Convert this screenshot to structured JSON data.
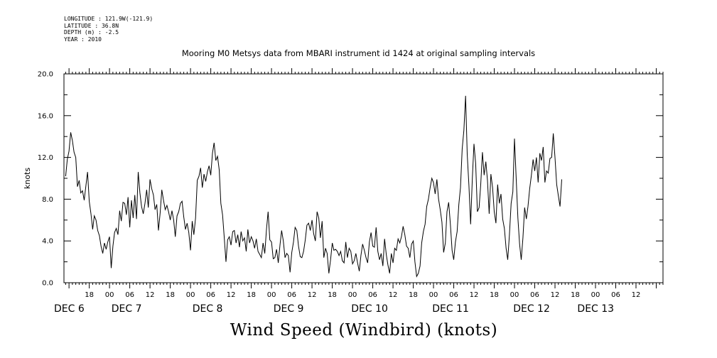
{
  "header": {
    "longitude": "LONGITUDE : 121.9W(-121.9)",
    "latitude": "LATITUDE : 36.8N",
    "depth": "DEPTH (m) : -2.5",
    "year": "YEAR : 2010",
    "title": "Mooring M0 Metsys data from MBARI instrument id 1424 at original sampling intervals"
  },
  "chart_data": {
    "type": "line",
    "title": "Mooring M0 Metsys data from MBARI instrument id 1424 at original sampling intervals",
    "xlabel": "Wind Speed (Windbird) (knots)",
    "ylabel": "knots",
    "ylim": [
      0,
      20
    ],
    "yticks": [
      "0.0",
      "4.0",
      "8.0",
      "12.0",
      "16.0",
      "20.0"
    ],
    "xlim_hours_from_dec6_00": [
      10.5,
      188
    ],
    "hour_ticks": [
      "18",
      "00",
      "06",
      "12",
      "18",
      "00",
      "06",
      "12",
      "18",
      "00",
      "06",
      "12",
      "18",
      "00",
      "06",
      "12",
      "18",
      "00",
      "06",
      "12",
      "18",
      "00",
      "06",
      "12",
      "18",
      "00",
      "06",
      "12"
    ],
    "day_labels": [
      "DEC 6",
      "DEC 7",
      "DEC 8",
      "DEC 9",
      "DEC 10",
      "DEC 11",
      "DEC 12",
      "DEC 13"
    ],
    "series": [
      {
        "color": "#000000",
        "x_start": "DEC 6 11:00",
        "interval_minutes": 30,
        "values": [
          10.2,
          11.8,
          12.6,
          14.4,
          13.6,
          12.5,
          12.0,
          9.2,
          9.8,
          8.6,
          8.8,
          7.9,
          9.3,
          10.6,
          7.8,
          6.6,
          5.1,
          6.4,
          6.0,
          5.0,
          4.5,
          3.5,
          2.8,
          3.8,
          3.2,
          3.9,
          4.4,
          1.4,
          3.5,
          4.8,
          5.2,
          4.6,
          6.9,
          5.9,
          7.7,
          7.6,
          6.5,
          8.2,
          5.3,
          7.9,
          6.2,
          8.4,
          6.1,
          10.6,
          8.6,
          7.3,
          6.6,
          7.6,
          8.9,
          7.2,
          9.9,
          9.0,
          8.4,
          7.0,
          7.5,
          5.0,
          6.7,
          8.9,
          7.9,
          7.0,
          7.4,
          6.8,
          6.0,
          6.9,
          6.0,
          4.4,
          6.4,
          6.8,
          7.6,
          7.8,
          6.3,
          5.1,
          5.7,
          4.8,
          3.1,
          5.9,
          4.6,
          6.2,
          9.8,
          10.2,
          11.0,
          9.1,
          10.4,
          9.7,
          10.6,
          11.2,
          10.3,
          12.4,
          13.4,
          11.7,
          12.1,
          10.8,
          7.6,
          6.5,
          4.3,
          2.0,
          4.1,
          4.4,
          3.6,
          4.9,
          5.0,
          3.8,
          4.6,
          3.4,
          4.9,
          4.0,
          4.3,
          3.0,
          5.1,
          3.8,
          4.4,
          4.0,
          3.3,
          4.2,
          3.0,
          2.7,
          2.4,
          3.8,
          2.8,
          5.1,
          6.8,
          4.1,
          3.9,
          2.3,
          2.4,
          3.2,
          1.9,
          3.6,
          5.0,
          4.0,
          2.4,
          2.8,
          2.6,
          1.0,
          2.9,
          3.9,
          5.3,
          5.0,
          3.5,
          2.5,
          2.4,
          3.0,
          4.1,
          5.5,
          5.7,
          5.0,
          6.0,
          4.7,
          4.0,
          6.8,
          6.2,
          4.3,
          5.9,
          2.4,
          3.3,
          2.8,
          0.9,
          2.2,
          3.8,
          3.1,
          3.2,
          3.0,
          2.6,
          3.0,
          2.1,
          1.9,
          3.9,
          2.4,
          3.3,
          3.0,
          1.8,
          2.1,
          2.8,
          1.9,
          1.1,
          2.6,
          3.7,
          3.1,
          2.4,
          1.9,
          3.9,
          4.8,
          3.5,
          3.4,
          5.3,
          3.0,
          2.2,
          2.8,
          1.6,
          4.2,
          2.7,
          1.7,
          0.9,
          2.8,
          1.9,
          3.3,
          3.1,
          4.2,
          3.8,
          4.4,
          5.4,
          4.6,
          3.5,
          3.3,
          2.4,
          3.7,
          4.0,
          2.0,
          0.6,
          0.9,
          1.6,
          3.8,
          4.9,
          5.6,
          7.3,
          8.0,
          9.1,
          10.0,
          9.6,
          8.5,
          9.9,
          8.0,
          7.0,
          5.8,
          2.9,
          3.8,
          6.8,
          7.7,
          5.6,
          3.1,
          2.2,
          3.9,
          4.9,
          7.5,
          9.1,
          12.8,
          14.6,
          17.9,
          12.3,
          9.3,
          5.6,
          10.0,
          13.3,
          11.4,
          6.8,
          7.2,
          9.4,
          12.5,
          10.3,
          11.6,
          9.8,
          6.6,
          10.4,
          9.1,
          6.8,
          5.7,
          9.4,
          7.6,
          8.5,
          6.1,
          5.2,
          3.3,
          2.2,
          4.6,
          7.6,
          8.7,
          13.8,
          10.0,
          6.2,
          3.7,
          2.2,
          4.3,
          7.2,
          6.1,
          7.3,
          9.0,
          10.3,
          11.8,
          10.7,
          12.0,
          9.6,
          12.4,
          11.7,
          13.0,
          9.6,
          10.7,
          10.5,
          11.9,
          12.0,
          14.3,
          12.0,
          9.4,
          8.3,
          7.3,
          9.9
        ]
      }
    ],
    "grid": false
  }
}
